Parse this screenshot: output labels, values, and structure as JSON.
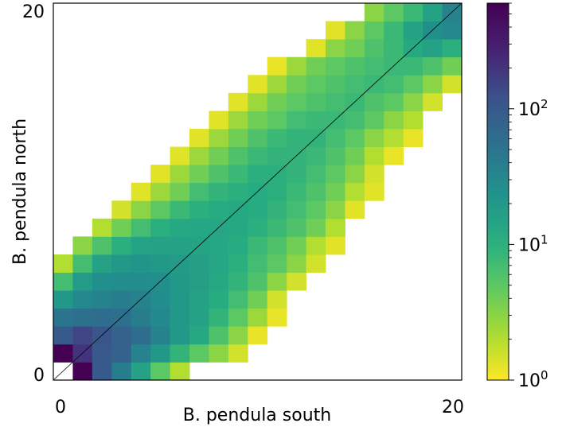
{
  "chart_data": {
    "type": "heatmap",
    "title": "",
    "xlabel": "B. pendula south",
    "ylabel": "B. pendula north",
    "x_ticks": [
      "0",
      "20"
    ],
    "y_ticks": [
      "0",
      "20"
    ],
    "xlim": [
      0,
      20
    ],
    "ylim": [
      0,
      20
    ],
    "colormap": "viridis_r",
    "color_scale": "log",
    "colorbar": {
      "range": [
        1,
        600
      ],
      "tick_labels": [
        {
          "base": "10",
          "exp": "0",
          "value": 1
        },
        {
          "base": "10",
          "exp": "1",
          "value": 10
        },
        {
          "base": "10",
          "exp": "2",
          "value": 100
        }
      ]
    },
    "diagonal_line": true,
    "grid": false,
    "cells": [
      {
        "x": 0,
        "y": 0,
        "v": 0
      },
      {
        "x": 1,
        "y": 0,
        "v": 600
      },
      {
        "x": 2,
        "y": 0,
        "v": 100
      },
      {
        "x": 3,
        "y": 0,
        "v": 40
      },
      {
        "x": 4,
        "y": 0,
        "v": 15
      },
      {
        "x": 5,
        "y": 0,
        "v": 5
      },
      {
        "x": 6,
        "y": 0,
        "v": 2
      },
      {
        "x": 0,
        "y": 1,
        "v": 600
      },
      {
        "x": 1,
        "y": 1,
        "v": 200
      },
      {
        "x": 2,
        "y": 1,
        "v": 100
      },
      {
        "x": 3,
        "y": 1,
        "v": 80
      },
      {
        "x": 4,
        "y": 1,
        "v": 35
      },
      {
        "x": 5,
        "y": 1,
        "v": 20
      },
      {
        "x": 6,
        "y": 1,
        "v": 9
      },
      {
        "x": 7,
        "y": 1,
        "v": 5
      },
      {
        "x": 8,
        "y": 1,
        "v": 3
      },
      {
        "x": 9,
        "y": 1,
        "v": 1.5
      },
      {
        "x": 0,
        "y": 2,
        "v": 100
      },
      {
        "x": 1,
        "y": 2,
        "v": 150
      },
      {
        "x": 2,
        "y": 2,
        "v": 110
      },
      {
        "x": 3,
        "y": 2,
        "v": 80
      },
      {
        "x": 4,
        "y": 2,
        "v": 60
      },
      {
        "x": 5,
        "y": 2,
        "v": 35
      },
      {
        "x": 6,
        "y": 2,
        "v": 20
      },
      {
        "x": 7,
        "y": 2,
        "v": 12
      },
      {
        "x": 8,
        "y": 2,
        "v": 6
      },
      {
        "x": 9,
        "y": 2,
        "v": 3
      },
      {
        "x": 10,
        "y": 2,
        "v": 1.2
      },
      {
        "x": 0,
        "y": 3,
        "v": 50
      },
      {
        "x": 1,
        "y": 3,
        "v": 55
      },
      {
        "x": 2,
        "y": 3,
        "v": 60
      },
      {
        "x": 3,
        "y": 3,
        "v": 55
      },
      {
        "x": 4,
        "y": 3,
        "v": 40
      },
      {
        "x": 5,
        "y": 3,
        "v": 30
      },
      {
        "x": 6,
        "y": 3,
        "v": 20
      },
      {
        "x": 7,
        "y": 3,
        "v": 15
      },
      {
        "x": 8,
        "y": 3,
        "v": 9
      },
      {
        "x": 9,
        "y": 3,
        "v": 5
      },
      {
        "x": 10,
        "y": 3,
        "v": 2.5
      },
      {
        "x": 11,
        "y": 3,
        "v": 1.2
      },
      {
        "x": 0,
        "y": 4,
        "v": 20
      },
      {
        "x": 1,
        "y": 4,
        "v": 30
      },
      {
        "x": 2,
        "y": 4,
        "v": 35
      },
      {
        "x": 3,
        "y": 4,
        "v": 40
      },
      {
        "x": 4,
        "y": 4,
        "v": 35
      },
      {
        "x": 5,
        "y": 4,
        "v": 28
      },
      {
        "x": 6,
        "y": 4,
        "v": 20
      },
      {
        "x": 7,
        "y": 4,
        "v": 15
      },
      {
        "x": 8,
        "y": 4,
        "v": 11
      },
      {
        "x": 9,
        "y": 4,
        "v": 7
      },
      {
        "x": 10,
        "y": 4,
        "v": 4
      },
      {
        "x": 11,
        "y": 4,
        "v": 1.5
      },
      {
        "x": 0,
        "y": 5,
        "v": 7
      },
      {
        "x": 1,
        "y": 5,
        "v": 18
      },
      {
        "x": 2,
        "y": 5,
        "v": 25
      },
      {
        "x": 3,
        "y": 5,
        "v": 28
      },
      {
        "x": 4,
        "y": 5,
        "v": 28
      },
      {
        "x": 5,
        "y": 5,
        "v": 25
      },
      {
        "x": 6,
        "y": 5,
        "v": 20
      },
      {
        "x": 7,
        "y": 5,
        "v": 16
      },
      {
        "x": 8,
        "y": 5,
        "v": 12
      },
      {
        "x": 9,
        "y": 5,
        "v": 9
      },
      {
        "x": 10,
        "y": 5,
        "v": 6
      },
      {
        "x": 11,
        "y": 5,
        "v": 3
      },
      {
        "x": 12,
        "y": 5,
        "v": 1.5
      },
      {
        "x": 0,
        "y": 6,
        "v": 2
      },
      {
        "x": 1,
        "y": 6,
        "v": 7
      },
      {
        "x": 2,
        "y": 6,
        "v": 15
      },
      {
        "x": 3,
        "y": 6,
        "v": 20
      },
      {
        "x": 4,
        "y": 6,
        "v": 22
      },
      {
        "x": 5,
        "y": 6,
        "v": 20
      },
      {
        "x": 6,
        "y": 6,
        "v": 18
      },
      {
        "x": 7,
        "y": 6,
        "v": 16
      },
      {
        "x": 8,
        "y": 6,
        "v": 13
      },
      {
        "x": 9,
        "y": 6,
        "v": 10
      },
      {
        "x": 10,
        "y": 6,
        "v": 7
      },
      {
        "x": 11,
        "y": 6,
        "v": 5
      },
      {
        "x": 12,
        "y": 6,
        "v": 3
      },
      {
        "x": 13,
        "y": 6,
        "v": 1.5
      },
      {
        "x": 1,
        "y": 7,
        "v": 3
      },
      {
        "x": 2,
        "y": 7,
        "v": 6
      },
      {
        "x": 3,
        "y": 7,
        "v": 10
      },
      {
        "x": 4,
        "y": 7,
        "v": 14
      },
      {
        "x": 5,
        "y": 7,
        "v": 15
      },
      {
        "x": 6,
        "y": 7,
        "v": 15
      },
      {
        "x": 7,
        "y": 7,
        "v": 14
      },
      {
        "x": 8,
        "y": 7,
        "v": 13
      },
      {
        "x": 9,
        "y": 7,
        "v": 11
      },
      {
        "x": 10,
        "y": 7,
        "v": 8
      },
      {
        "x": 11,
        "y": 7,
        "v": 6
      },
      {
        "x": 12,
        "y": 7,
        "v": 4
      },
      {
        "x": 13,
        "y": 7,
        "v": 2
      },
      {
        "x": 14,
        "y": 7,
        "v": 1.3
      },
      {
        "x": 2,
        "y": 8,
        "v": 2
      },
      {
        "x": 3,
        "y": 8,
        "v": 4
      },
      {
        "x": 4,
        "y": 8,
        "v": 7
      },
      {
        "x": 5,
        "y": 8,
        "v": 10
      },
      {
        "x": 6,
        "y": 8,
        "v": 12
      },
      {
        "x": 7,
        "y": 8,
        "v": 13
      },
      {
        "x": 8,
        "y": 8,
        "v": 13
      },
      {
        "x": 9,
        "y": 8,
        "v": 12
      },
      {
        "x": 10,
        "y": 8,
        "v": 10
      },
      {
        "x": 11,
        "y": 8,
        "v": 8
      },
      {
        "x": 12,
        "y": 8,
        "v": 6
      },
      {
        "x": 13,
        "y": 8,
        "v": 4
      },
      {
        "x": 14,
        "y": 8,
        "v": 2
      },
      {
        "x": 3,
        "y": 9,
        "v": 1.5
      },
      {
        "x": 4,
        "y": 9,
        "v": 3
      },
      {
        "x": 5,
        "y": 9,
        "v": 5
      },
      {
        "x": 6,
        "y": 9,
        "v": 8
      },
      {
        "x": 7,
        "y": 9,
        "v": 10
      },
      {
        "x": 8,
        "y": 9,
        "v": 11
      },
      {
        "x": 9,
        "y": 9,
        "v": 12
      },
      {
        "x": 10,
        "y": 9,
        "v": 11
      },
      {
        "x": 11,
        "y": 9,
        "v": 9
      },
      {
        "x": 12,
        "y": 9,
        "v": 7
      },
      {
        "x": 13,
        "y": 9,
        "v": 5
      },
      {
        "x": 14,
        "y": 9,
        "v": 3
      },
      {
        "x": 15,
        "y": 9,
        "v": 1.3
      },
      {
        "x": 4,
        "y": 10,
        "v": 1.3
      },
      {
        "x": 5,
        "y": 10,
        "v": 2.5
      },
      {
        "x": 6,
        "y": 10,
        "v": 4
      },
      {
        "x": 7,
        "y": 10,
        "v": 7
      },
      {
        "x": 8,
        "y": 10,
        "v": 9
      },
      {
        "x": 9,
        "y": 10,
        "v": 10
      },
      {
        "x": 10,
        "y": 10,
        "v": 11
      },
      {
        "x": 11,
        "y": 10,
        "v": 10
      },
      {
        "x": 12,
        "y": 10,
        "v": 8
      },
      {
        "x": 13,
        "y": 10,
        "v": 6
      },
      {
        "x": 14,
        "y": 10,
        "v": 4
      },
      {
        "x": 15,
        "y": 10,
        "v": 2
      },
      {
        "x": 16,
        "y": 10,
        "v": 1.3
      },
      {
        "x": 5,
        "y": 11,
        "v": 1.3
      },
      {
        "x": 6,
        "y": 11,
        "v": 2.5
      },
      {
        "x": 7,
        "y": 11,
        "v": 4
      },
      {
        "x": 8,
        "y": 11,
        "v": 6
      },
      {
        "x": 9,
        "y": 11,
        "v": 8
      },
      {
        "x": 10,
        "y": 11,
        "v": 10
      },
      {
        "x": 11,
        "y": 11,
        "v": 10
      },
      {
        "x": 12,
        "y": 11,
        "v": 9
      },
      {
        "x": 13,
        "y": 11,
        "v": 7
      },
      {
        "x": 14,
        "y": 11,
        "v": 5
      },
      {
        "x": 15,
        "y": 11,
        "v": 3
      },
      {
        "x": 16,
        "y": 11,
        "v": 1.5
      },
      {
        "x": 6,
        "y": 12,
        "v": 1.3
      },
      {
        "x": 7,
        "y": 12,
        "v": 2.5
      },
      {
        "x": 8,
        "y": 12,
        "v": 4
      },
      {
        "x": 9,
        "y": 12,
        "v": 6
      },
      {
        "x": 10,
        "y": 12,
        "v": 8
      },
      {
        "x": 11,
        "y": 12,
        "v": 9
      },
      {
        "x": 12,
        "y": 12,
        "v": 9
      },
      {
        "x": 13,
        "y": 12,
        "v": 8
      },
      {
        "x": 14,
        "y": 12,
        "v": 6
      },
      {
        "x": 15,
        "y": 12,
        "v": 4
      },
      {
        "x": 16,
        "y": 12,
        "v": 2
      },
      {
        "x": 17,
        "y": 12,
        "v": 1.2
      },
      {
        "x": 7,
        "y": 13,
        "v": 1.3
      },
      {
        "x": 8,
        "y": 13,
        "v": 2.5
      },
      {
        "x": 9,
        "y": 13,
        "v": 4
      },
      {
        "x": 10,
        "y": 13,
        "v": 6
      },
      {
        "x": 11,
        "y": 13,
        "v": 8
      },
      {
        "x": 12,
        "y": 13,
        "v": 9
      },
      {
        "x": 13,
        "y": 13,
        "v": 9
      },
      {
        "x": 14,
        "y": 13,
        "v": 7
      },
      {
        "x": 15,
        "y": 13,
        "v": 5
      },
      {
        "x": 16,
        "y": 13,
        "v": 3
      },
      {
        "x": 17,
        "y": 13,
        "v": 2
      },
      {
        "x": 18,
        "y": 13,
        "v": 1.2
      },
      {
        "x": 8,
        "y": 14,
        "v": 1.3
      },
      {
        "x": 9,
        "y": 14,
        "v": 2.5
      },
      {
        "x": 10,
        "y": 14,
        "v": 4
      },
      {
        "x": 11,
        "y": 14,
        "v": 5
      },
      {
        "x": 12,
        "y": 14,
        "v": 7
      },
      {
        "x": 13,
        "y": 14,
        "v": 8
      },
      {
        "x": 14,
        "y": 14,
        "v": 8
      },
      {
        "x": 15,
        "y": 14,
        "v": 7
      },
      {
        "x": 16,
        "y": 14,
        "v": 5
      },
      {
        "x": 17,
        "y": 14,
        "v": 3
      },
      {
        "x": 18,
        "y": 14,
        "v": 2
      },
      {
        "x": 9,
        "y": 15,
        "v": 1.3
      },
      {
        "x": 10,
        "y": 15,
        "v": 2.5
      },
      {
        "x": 11,
        "y": 15,
        "v": 4
      },
      {
        "x": 12,
        "y": 15,
        "v": 5
      },
      {
        "x": 13,
        "y": 15,
        "v": 6
      },
      {
        "x": 14,
        "y": 15,
        "v": 7
      },
      {
        "x": 15,
        "y": 15,
        "v": 8
      },
      {
        "x": 16,
        "y": 15,
        "v": 6
      },
      {
        "x": 17,
        "y": 15,
        "v": 5
      },
      {
        "x": 18,
        "y": 15,
        "v": 3
      },
      {
        "x": 19,
        "y": 15,
        "v": 1.5
      },
      {
        "x": 10,
        "y": 16,
        "v": 1.3
      },
      {
        "x": 11,
        "y": 16,
        "v": 2.5
      },
      {
        "x": 12,
        "y": 16,
        "v": 4
      },
      {
        "x": 13,
        "y": 16,
        "v": 5
      },
      {
        "x": 14,
        "y": 16,
        "v": 6
      },
      {
        "x": 15,
        "y": 16,
        "v": 7
      },
      {
        "x": 16,
        "y": 16,
        "v": 8
      },
      {
        "x": 17,
        "y": 16,
        "v": 7
      },
      {
        "x": 18,
        "y": 16,
        "v": 5
      },
      {
        "x": 19,
        "y": 16,
        "v": 3
      },
      {
        "x": 20,
        "y": 16,
        "v": 1.5
      },
      {
        "x": 11,
        "y": 17,
        "v": 1.2
      },
      {
        "x": 12,
        "y": 17,
        "v": 2.5
      },
      {
        "x": 13,
        "y": 17,
        "v": 4
      },
      {
        "x": 14,
        "y": 17,
        "v": 5
      },
      {
        "x": 15,
        "y": 17,
        "v": 6
      },
      {
        "x": 16,
        "y": 17,
        "v": 7
      },
      {
        "x": 17,
        "y": 17,
        "v": 8
      },
      {
        "x": 18,
        "y": 17,
        "v": 8
      },
      {
        "x": 19,
        "y": 17,
        "v": 6
      },
      {
        "x": 20,
        "y": 17,
        "v": 4
      },
      {
        "x": 13,
        "y": 18,
        "v": 1.3
      },
      {
        "x": 14,
        "y": 18,
        "v": 3
      },
      {
        "x": 15,
        "y": 18,
        "v": 4
      },
      {
        "x": 16,
        "y": 18,
        "v": 6
      },
      {
        "x": 17,
        "y": 18,
        "v": 8
      },
      {
        "x": 18,
        "y": 18,
        "v": 12
      },
      {
        "x": 19,
        "y": 18,
        "v": 15
      },
      {
        "x": 20,
        "y": 18,
        "v": 10
      },
      {
        "x": 14,
        "y": 19,
        "v": 1.3
      },
      {
        "x": 15,
        "y": 19,
        "v": 3
      },
      {
        "x": 16,
        "y": 19,
        "v": 5
      },
      {
        "x": 17,
        "y": 19,
        "v": 8
      },
      {
        "x": 18,
        "y": 19,
        "v": 15
      },
      {
        "x": 19,
        "y": 19,
        "v": 25
      },
      {
        "x": 20,
        "y": 19,
        "v": 30
      },
      {
        "x": 16,
        "y": 20,
        "v": 3
      },
      {
        "x": 17,
        "y": 20,
        "v": 5
      },
      {
        "x": 18,
        "y": 20,
        "v": 8
      },
      {
        "x": 19,
        "y": 20,
        "v": 15
      },
      {
        "x": 20,
        "y": 20,
        "v": 35
      }
    ]
  }
}
